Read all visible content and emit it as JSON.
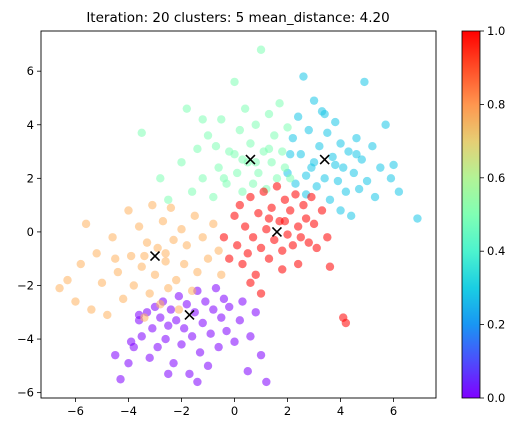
{
  "chart_data": {
    "type": "scatter",
    "title": "Iteration: 20 clusters: 5 mean_distance: 4.20",
    "xlabel": "",
    "ylabel": "",
    "xlim": [
      -7.3,
      7.6
    ],
    "ylim": [
      -6.2,
      7.5
    ],
    "x_ticks": [
      -6,
      -4,
      -2,
      0,
      2,
      4,
      6
    ],
    "y_ticks": [
      -6,
      -4,
      -2,
      0,
      2,
      4,
      6
    ],
    "x_tick_labels": [
      "−6",
      "−4",
      "−2",
      "0",
      "2",
      "4",
      "6"
    ],
    "y_tick_labels": [
      "−6",
      "−4",
      "−2",
      "0",
      "2",
      "4",
      "6"
    ],
    "grid": false,
    "colormap": "rainbow",
    "colorbar": {
      "range": [
        0.0,
        1.0
      ],
      "ticks": [
        0.0,
        0.2,
        0.4,
        0.6,
        0.8,
        1.0
      ],
      "tick_labels": [
        "0.0",
        "0.2",
        "0.4",
        "0.6",
        "0.8",
        "1.0"
      ]
    },
    "clusters": [
      {
        "color_value": 0.0,
        "color": "#8000ff",
        "center": [
          -1.7,
          -3.1
        ],
        "points": [
          [
            -4.5,
            -4.6
          ],
          [
            -4.3,
            -5.5
          ],
          [
            -4.0,
            -4.9
          ],
          [
            -3.9,
            -4.1
          ],
          [
            -3.8,
            -4.3
          ],
          [
            -3.6,
            -3.3
          ],
          [
            -3.5,
            -3.9
          ],
          [
            -3.3,
            -3.0
          ],
          [
            -3.2,
            -4.7
          ],
          [
            -3.1,
            -3.6
          ],
          [
            -3.0,
            -2.8
          ],
          [
            -2.9,
            -4.3
          ],
          [
            -2.8,
            -3.2
          ],
          [
            -2.7,
            -2.6
          ],
          [
            -2.6,
            -4.0
          ],
          [
            -2.5,
            -3.5
          ],
          [
            -2.4,
            -2.9
          ],
          [
            -2.3,
            -4.9
          ],
          [
            -2.2,
            -3.3
          ],
          [
            -2.1,
            -2.4
          ],
          [
            -2.0,
            -4.2
          ],
          [
            -1.9,
            -3.6
          ],
          [
            -1.8,
            -2.7
          ],
          [
            -1.7,
            -5.3
          ],
          [
            -1.6,
            -3.9
          ],
          [
            -1.5,
            -3.0
          ],
          [
            -1.4,
            -2.2
          ],
          [
            -1.3,
            -4.5
          ],
          [
            -1.2,
            -3.4
          ],
          [
            -1.1,
            -2.6
          ],
          [
            -1.0,
            -5.0
          ],
          [
            -0.9,
            -3.8
          ],
          [
            -0.8,
            -2.9
          ],
          [
            -0.7,
            -2.1
          ],
          [
            -0.6,
            -4.3
          ],
          [
            -0.5,
            -3.2
          ],
          [
            -0.4,
            -2.5
          ],
          [
            -0.3,
            -3.7
          ],
          [
            -0.2,
            -2.8
          ],
          [
            0.0,
            -4.1
          ],
          [
            0.2,
            -3.3
          ],
          [
            0.3,
            -2.6
          ],
          [
            0.5,
            -5.2
          ],
          [
            0.6,
            -3.9
          ],
          [
            0.8,
            -3.0
          ],
          [
            1.0,
            -4.6
          ],
          [
            1.2,
            -5.6
          ],
          [
            -2.5,
            -5.3
          ],
          [
            -1.4,
            -5.6
          ],
          [
            -3.6,
            -3.1
          ]
        ]
      },
      {
        "color_value": 0.25,
        "color": "#1ac7e7",
        "center": [
          3.4,
          2.7
        ],
        "points": [
          [
            2.0,
            2.2
          ],
          [
            2.2,
            3.5
          ],
          [
            2.3,
            1.8
          ],
          [
            2.4,
            4.3
          ],
          [
            2.5,
            2.9
          ],
          [
            2.6,
            5.8
          ],
          [
            2.7,
            1.4
          ],
          [
            2.8,
            3.8
          ],
          [
            2.9,
            2.4
          ],
          [
            3.0,
            4.9
          ],
          [
            3.1,
            1.7
          ],
          [
            3.2,
            3.2
          ],
          [
            3.3,
            4.5
          ],
          [
            3.4,
            2.0
          ],
          [
            3.5,
            3.7
          ],
          [
            3.6,
            1.2
          ],
          [
            3.7,
            2.8
          ],
          [
            3.8,
            4.1
          ],
          [
            3.9,
            1.9
          ],
          [
            4.0,
            3.3
          ],
          [
            4.1,
            2.4
          ],
          [
            4.2,
            1.5
          ],
          [
            4.3,
            3.0
          ],
          [
            4.4,
            0.6
          ],
          [
            4.5,
            2.2
          ],
          [
            4.6,
            3.5
          ],
          [
            4.7,
            1.6
          ],
          [
            4.8,
            2.7
          ],
          [
            4.9,
            5.6
          ],
          [
            5.0,
            1.9
          ],
          [
            5.2,
            3.2
          ],
          [
            5.3,
            1.3
          ],
          [
            5.5,
            2.4
          ],
          [
            5.7,
            4.0
          ],
          [
            5.9,
            2.0
          ],
          [
            6.0,
            2.5
          ],
          [
            6.2,
            1.5
          ],
          [
            6.9,
            0.5
          ],
          [
            2.1,
            2.9
          ],
          [
            3.0,
            2.6
          ],
          [
            3.8,
            2.5
          ],
          [
            2.7,
            2.1
          ],
          [
            4.6,
            2.9
          ],
          [
            3.4,
            4.4
          ],
          [
            4.0,
            0.8
          ]
        ]
      },
      {
        "color_value": 0.5,
        "color": "#80ffb4",
        "center": [
          0.6,
          2.7
        ],
        "points": [
          [
            -3.5,
            3.7
          ],
          [
            -2.8,
            2.0
          ],
          [
            -2.5,
            1.2
          ],
          [
            -2.0,
            2.6
          ],
          [
            -1.8,
            4.6
          ],
          [
            -1.6,
            1.5
          ],
          [
            -1.4,
            3.1
          ],
          [
            -1.2,
            2.0
          ],
          [
            -1.0,
            3.6
          ],
          [
            -0.8,
            1.3
          ],
          [
            -0.6,
            2.4
          ],
          [
            -0.5,
            4.2
          ],
          [
            -0.3,
            1.8
          ],
          [
            -0.2,
            3.0
          ],
          [
            0.0,
            5.6
          ],
          [
            0.1,
            2.2
          ],
          [
            0.2,
            3.8
          ],
          [
            0.3,
            1.5
          ],
          [
            0.4,
            4.6
          ],
          [
            0.5,
            2.6
          ],
          [
            0.6,
            3.3
          ],
          [
            0.7,
            1.8
          ],
          [
            0.8,
            4.0
          ],
          [
            0.9,
            2.2
          ],
          [
            1.0,
            6.8
          ],
          [
            1.1,
            3.0
          ],
          [
            1.2,
            1.6
          ],
          [
            1.3,
            4.4
          ],
          [
            1.4,
            2.6
          ],
          [
            1.5,
            3.6
          ],
          [
            1.6,
            2.0
          ],
          [
            1.7,
            4.8
          ],
          [
            1.8,
            3.0
          ],
          [
            1.9,
            2.4
          ],
          [
            2.0,
            3.9
          ],
          [
            2.1,
            2.0
          ],
          [
            -0.7,
            3.2
          ],
          [
            0.0,
            2.9
          ],
          [
            0.8,
            2.6
          ],
          [
            -1.2,
            4.2
          ],
          [
            1.3,
            3.1
          ],
          [
            0.3,
            2.7
          ],
          [
            -0.4,
            2.0
          ]
        ]
      },
      {
        "color_value": 0.75,
        "color": "#ffb360",
        "center": [
          -3.0,
          -0.9
        ],
        "points": [
          [
            -6.6,
            -2.1
          ],
          [
            -6.3,
            -1.8
          ],
          [
            -6.0,
            -2.6
          ],
          [
            -5.8,
            -1.2
          ],
          [
            -5.6,
            0.3
          ],
          [
            -5.4,
            -2.9
          ],
          [
            -5.2,
            -0.8
          ],
          [
            -5.0,
            -1.9
          ],
          [
            -4.8,
            -3.1
          ],
          [
            -4.6,
            -0.2
          ],
          [
            -4.4,
            -1.5
          ],
          [
            -4.2,
            -2.5
          ],
          [
            -4.0,
            0.8
          ],
          [
            -3.9,
            -0.9
          ],
          [
            -3.8,
            -2.0
          ],
          [
            -3.6,
            0.2
          ],
          [
            -3.5,
            -1.3
          ],
          [
            -3.4,
            -3.2
          ],
          [
            -3.3,
            -0.4
          ],
          [
            -3.2,
            -2.3
          ],
          [
            -3.1,
            1.0
          ],
          [
            -3.0,
            -1.6
          ],
          [
            -2.9,
            -0.6
          ],
          [
            -2.8,
            -2.7
          ],
          [
            -2.7,
            0.4
          ],
          [
            -2.6,
            -1.1
          ],
          [
            -2.5,
            -2.1
          ],
          [
            -2.4,
            0.9
          ],
          [
            -2.3,
            -0.3
          ],
          [
            -2.2,
            -1.8
          ],
          [
            -2.1,
            -2.9
          ],
          [
            -2.0,
            0.1
          ],
          [
            -1.9,
            -1.2
          ],
          [
            -1.8,
            -0.5
          ],
          [
            -1.6,
            -2.2
          ],
          [
            -1.5,
            0.6
          ],
          [
            -1.4,
            -1.5
          ],
          [
            -1.2,
            -0.2
          ],
          [
            -1.0,
            -1.0
          ],
          [
            -0.8,
            0.3
          ],
          [
            -0.6,
            -0.7
          ],
          [
            -0.5,
            -1.6
          ],
          [
            -3.4,
            -0.9
          ],
          [
            -2.6,
            -0.8
          ],
          [
            -4.5,
            -1.0
          ]
        ]
      },
      {
        "color_value": 1.0,
        "color": "#ff0000",
        "center": [
          1.6,
          0.0
        ],
        "points": [
          [
            -0.4,
            -0.2
          ],
          [
            -0.2,
            -1.0
          ],
          [
            0.0,
            0.6
          ],
          [
            0.1,
            -0.5
          ],
          [
            0.2,
            1.0
          ],
          [
            0.3,
            -1.2
          ],
          [
            0.4,
            0.2
          ],
          [
            0.5,
            -0.8
          ],
          [
            0.6,
            1.3
          ],
          [
            0.7,
            -0.2
          ],
          [
            0.8,
            -1.6
          ],
          [
            0.9,
            0.7
          ],
          [
            1.0,
            -0.6
          ],
          [
            1.1,
            1.5
          ],
          [
            1.2,
            0.1
          ],
          [
            1.3,
            -1.0
          ],
          [
            1.4,
            0.9
          ],
          [
            1.5,
            -0.3
          ],
          [
            1.6,
            1.7
          ],
          [
            1.7,
            0.4
          ],
          [
            1.8,
            -0.7
          ],
          [
            1.9,
            1.2
          ],
          [
            2.0,
            -0.1
          ],
          [
            2.1,
            0.8
          ],
          [
            2.2,
            -0.5
          ],
          [
            2.3,
            1.4
          ],
          [
            2.4,
            0.2
          ],
          [
            2.5,
            -0.2
          ],
          [
            2.6,
            1.0
          ],
          [
            2.7,
            0.5
          ],
          [
            2.8,
            -0.4
          ],
          [
            2.9,
            1.3
          ],
          [
            3.0,
            0.3
          ],
          [
            3.1,
            -0.6
          ],
          [
            3.3,
            0.8
          ],
          [
            3.5,
            -0.2
          ],
          [
            3.6,
            -1.3
          ],
          [
            4.1,
            -3.2
          ],
          [
            4.2,
            -3.4
          ],
          [
            1.0,
            -2.3
          ],
          [
            0.6,
            -1.9
          ],
          [
            1.8,
            -1.4
          ],
          [
            2.4,
            -1.2
          ],
          [
            1.3,
            0.5
          ],
          [
            1.9,
            0.4
          ]
        ]
      }
    ]
  }
}
